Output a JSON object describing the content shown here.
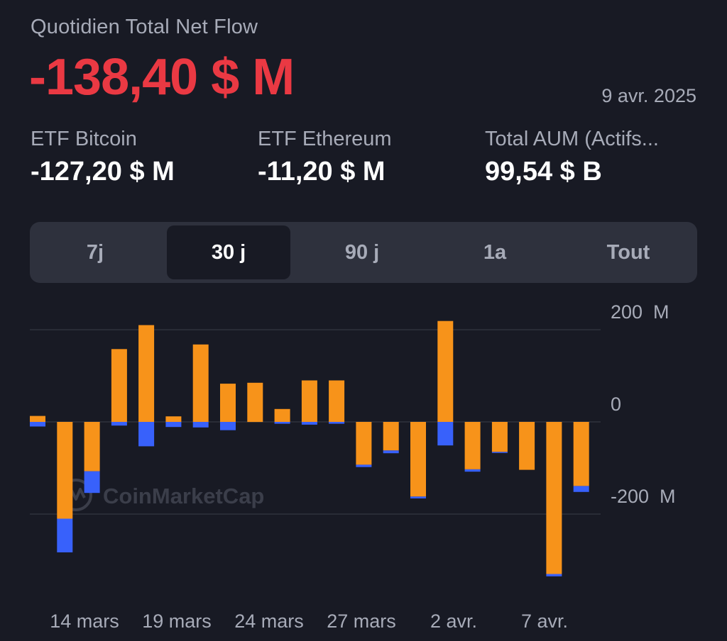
{
  "header": {
    "title": "Quotidien Total Net Flow",
    "value": "-138,40 $ M",
    "date": "9 avr. 2025"
  },
  "stats": [
    {
      "label": "ETF Bitcoin",
      "value": "-127,20 $ M"
    },
    {
      "label": "ETF Ethereum",
      "value": "-11,20 $ M"
    },
    {
      "label": "Total AUM (Actifs...",
      "value": "99,54 $ B"
    }
  ],
  "tabs": [
    {
      "label": "7j",
      "active": false
    },
    {
      "label": "30 j",
      "active": true
    },
    {
      "label": "90 j",
      "active": false
    },
    {
      "label": "1a",
      "active": false
    },
    {
      "label": "Tout",
      "active": false
    }
  ],
  "watermark": "CoinMarketCap",
  "colors": {
    "background": "#181a24",
    "negative": "#ea3943",
    "bitcoin": "#f7931a",
    "ethereum": "#3861fb",
    "muted": "#a7abb8"
  },
  "chart_data": {
    "type": "bar",
    "stacked": true,
    "y_ticks": [
      {
        "value": 200,
        "label": "200  M"
      },
      {
        "value": 0,
        "label": "0"
      },
      {
        "value": -200,
        "label": "-200  M"
      }
    ],
    "ylim": [
      -370,
      240
    ],
    "x_tick_labels": [
      "14 mars",
      "19 mars",
      "24 mars",
      "27 mars",
      "2 avr.",
      "7 avr."
    ],
    "series": [
      {
        "values": [
          13,
          -210,
          -107,
          158,
          210,
          12,
          168,
          83,
          85,
          28,
          90,
          90,
          -93,
          -62,
          -162,
          219,
          -103,
          -65,
          -104,
          -330,
          -139
        ]
      },
      {
        "values": [
          -10,
          -73,
          -47,
          -8,
          -53,
          -11,
          -12,
          -18,
          0,
          -4,
          -6,
          -4,
          -5,
          -6,
          -4,
          -51,
          -5,
          -2,
          0,
          -5,
          -13
        ]
      }
    ]
  }
}
